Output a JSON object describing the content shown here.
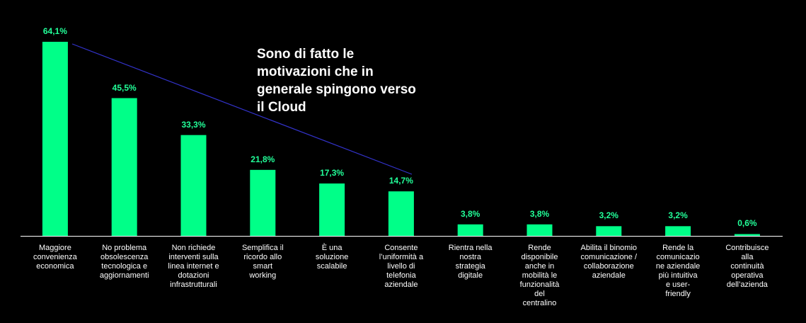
{
  "chart_data": {
    "type": "bar",
    "categories": [
      "Maggiore\nconvenienza\neconomica",
      "No problema\nobsolescenza\ntecnologica e\naggiornamenti",
      "Non richiede\ninterventi sulla\nlinea internet e\ndotazioni\ninfrastrutturali",
      "Semplifica il\nricordo allo\nsmart\nworking",
      "È una\nsoluzione\nscalabile",
      "Consente\nl’uniformità a\nlivello di\ntelefonia\naziendale",
      "Rientra nella\nnostra\nstrategia\ndigitale",
      "Rende\ndisponibile\nanche in\nmobilità le\nfunzionalità\ndel\ncentralino",
      "Abilita il binomio\ncomunicazione /\ncollaborazione\naziendale",
      "Rende la\ncomunicazio\nne aziendale\npiù intuitiva\ne user-\nfriendly",
      "Contribuisce\nalla\ncontinuità\noperativa\ndell’azienda"
    ],
    "values": [
      64.1,
      45.5,
      33.3,
      21.8,
      17.3,
      14.7,
      3.8,
      3.8,
      3.2,
      3.2,
      0.6
    ],
    "value_labels": [
      "64,1%",
      "45,5%",
      "33,3%",
      "21,8%",
      "17,3%",
      "14,7%",
      "3,8%",
      "3,8%",
      "3,2%",
      "3,2%",
      "0,6%"
    ],
    "ylim": [
      0,
      64.1
    ],
    "grid": false,
    "annotation": "Sono di fatto le motivazioni che in generale spingono verso il Cloud",
    "colors": {
      "bar": "#00ff88",
      "value_label": "#22ff99",
      "trend_line": "#3333cc",
      "axis": "#ffffff",
      "background": "#000000"
    }
  }
}
